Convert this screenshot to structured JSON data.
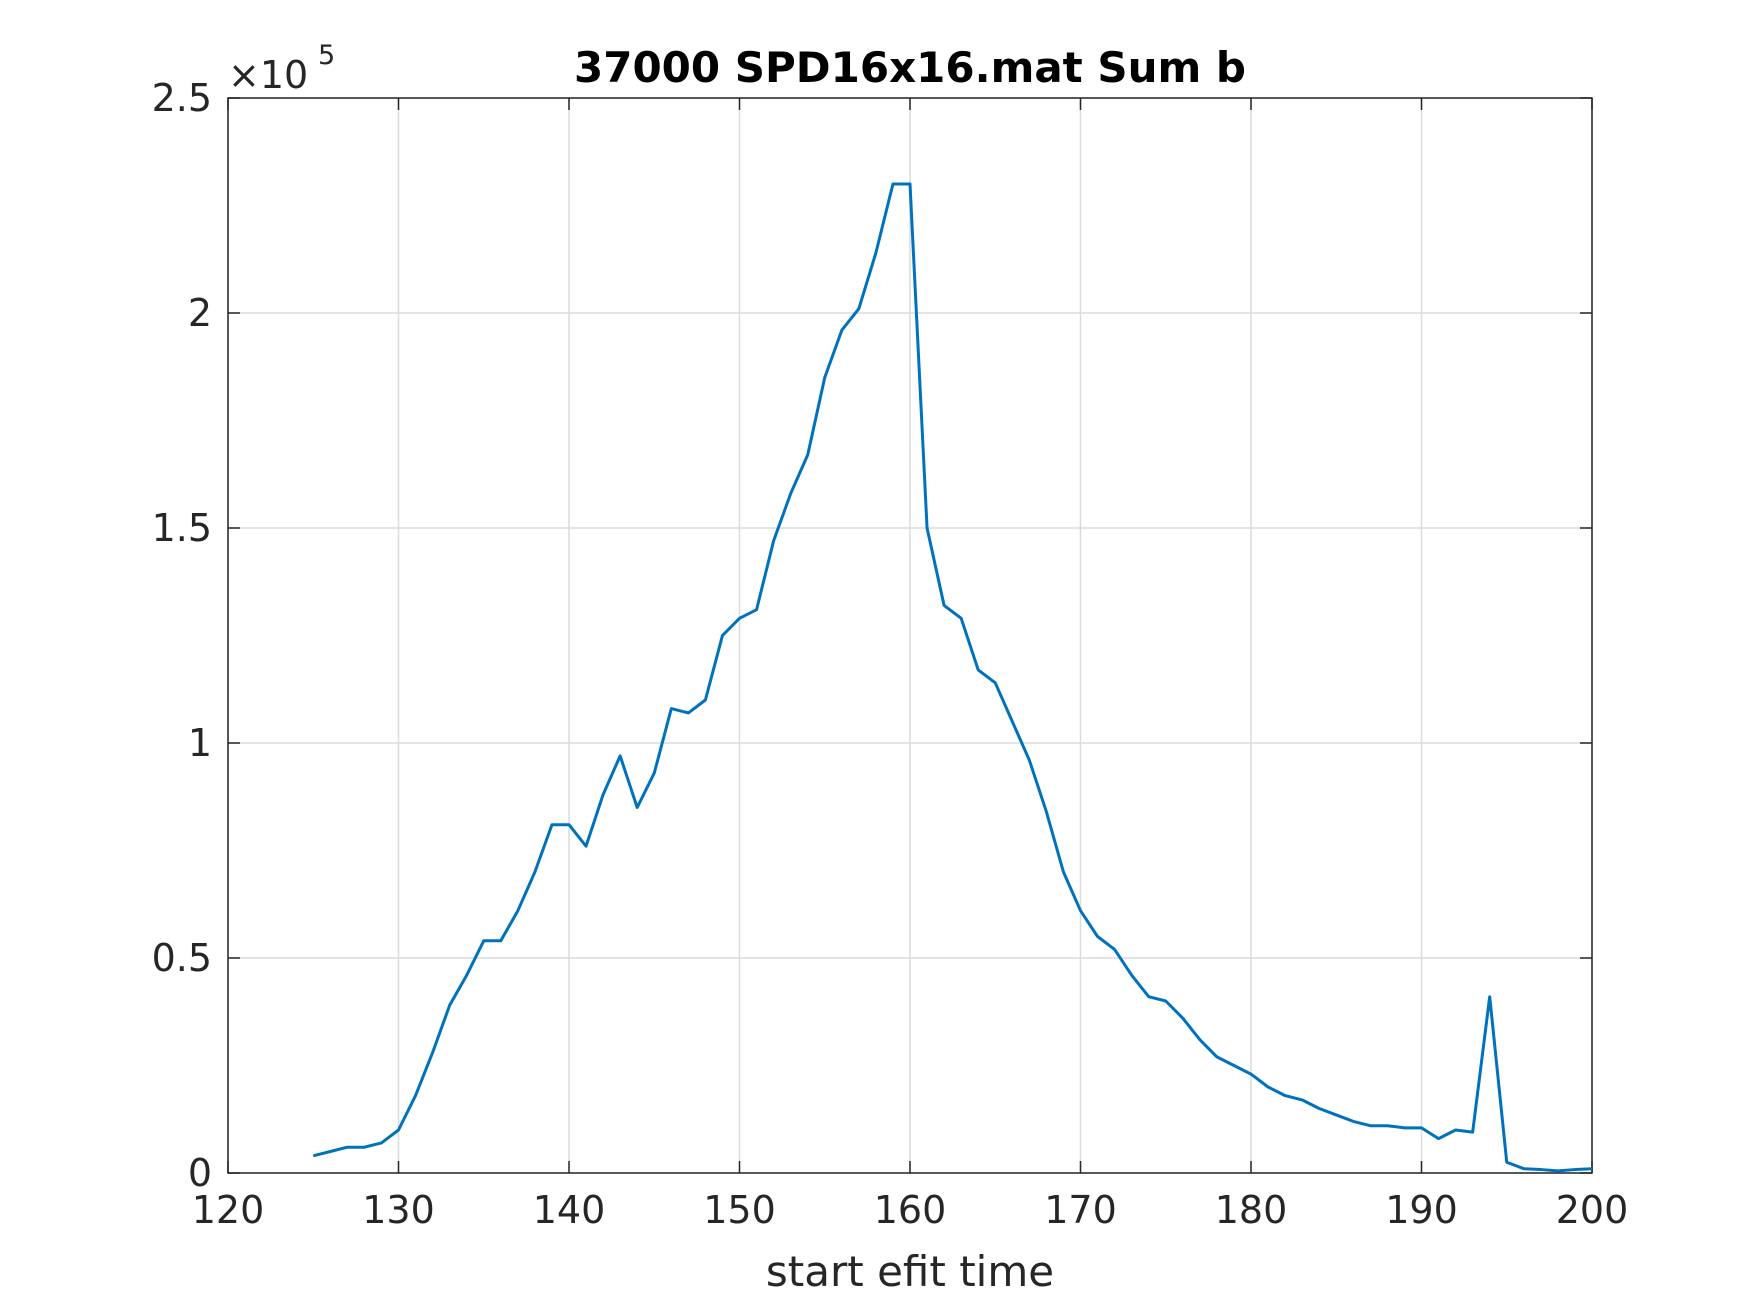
{
  "chart_data": {
    "type": "line",
    "title": "37000 SPD16x16.mat Sum b",
    "xlabel": "start efit time",
    "ylabel": "",
    "xlim": [
      120,
      200
    ],
    "ylim": [
      0,
      250000
    ],
    "y_exponent_label": "×10",
    "y_exponent_power": "5",
    "x_ticks": [
      "120",
      "130",
      "140",
      "150",
      "160",
      "170",
      "180",
      "190",
      "200"
    ],
    "y_ticks": [
      "0",
      "0.5",
      "1",
      "1.5",
      "2",
      "2.5"
    ],
    "grid": true,
    "line_color": "#0072BD",
    "series": [
      {
        "x": [
          125,
          126,
          127,
          128,
          129,
          130,
          131,
          132,
          133,
          134,
          135,
          136,
          137,
          138,
          139,
          140,
          141,
          142,
          143,
          144,
          145,
          146,
          147,
          148,
          149,
          150,
          151,
          152,
          153,
          154,
          155,
          156,
          157,
          158,
          159,
          160,
          161,
          162,
          163,
          164,
          165,
          166,
          167,
          168,
          169,
          170,
          171,
          172,
          173,
          174,
          175,
          176,
          177,
          178,
          179,
          180,
          181,
          182,
          183,
          184,
          185,
          186,
          187,
          188,
          189,
          190,
          191,
          192,
          193,
          194,
          195,
          196,
          197,
          198,
          199,
          200
        ],
        "y": [
          4000,
          5000,
          6000,
          6000,
          7000,
          10000,
          18000,
          28000,
          39000,
          46000,
          54000,
          54000,
          61000,
          70000,
          81000,
          81000,
          76000,
          88000,
          97000,
          85000,
          93000,
          108000,
          107000,
          110000,
          125000,
          129000,
          131000,
          147000,
          158000,
          167000,
          185000,
          196000,
          201000,
          214000,
          230000,
          230000,
          150000,
          132000,
          129000,
          117000,
          114000,
          105000,
          96000,
          84000,
          70000,
          61000,
          55000,
          52000,
          46000,
          41000,
          40000,
          36000,
          31000,
          27000,
          25000,
          23000,
          20000,
          18000,
          17000,
          15000,
          13500,
          12000,
          11000,
          11000,
          10500,
          10500,
          8000,
          10000,
          9500,
          41000,
          2500,
          1000,
          800,
          500,
          800,
          1000
        ]
      }
    ]
  }
}
